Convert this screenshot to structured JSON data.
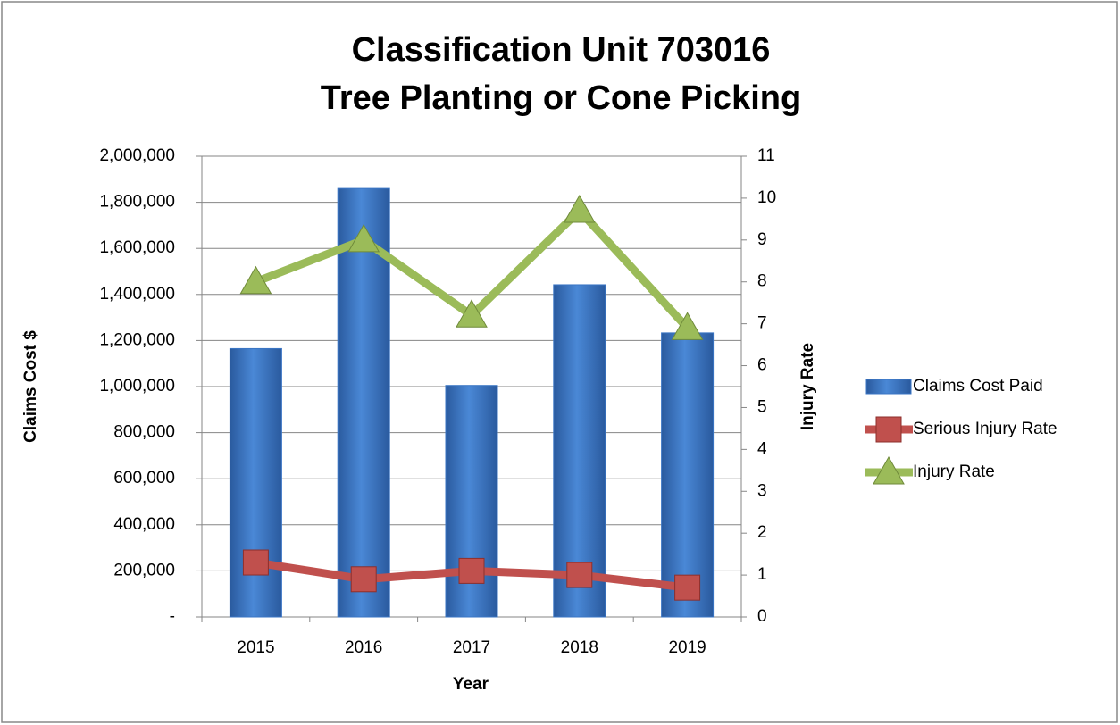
{
  "chart_data": {
    "type": "bar",
    "title": [
      "Classification Unit 703016",
      "Tree Planting or Cone Picking"
    ],
    "x_label": "Year",
    "y_label": "Claims Cost $",
    "y2_label": "Injury Rate",
    "categories": [
      "2015",
      "2016",
      "2017",
      "2018",
      "2019"
    ],
    "series": [
      {
        "name": "Claims Cost Paid",
        "type": "bar",
        "color": "#3a75c4",
        "values": [
          1165000,
          1860000,
          1005000,
          1442000,
          1233000
        ]
      },
      {
        "name": "Serious Injury Rate",
        "type": "line",
        "marker": "square",
        "axis": "y2",
        "color": "#c0504d",
        "values": [
          1.3,
          0.9,
          1.1,
          1.0,
          0.7
        ]
      },
      {
        "name": "Injury Rate",
        "type": "line",
        "marker": "triangle",
        "axis": "y2",
        "color": "#9bbb59",
        "values": [
          8.0,
          9.0,
          7.2,
          9.7,
          6.9
        ]
      }
    ],
    "ylim": [
      0,
      2000000
    ],
    "yticks": [
      {
        "value": 0,
        "label": "-"
      },
      {
        "value": 200000,
        "label": "200,000"
      },
      {
        "value": 400000,
        "label": "400,000"
      },
      {
        "value": 600000,
        "label": "600,000"
      },
      {
        "value": 800000,
        "label": "800,000"
      },
      {
        "value": 1000000,
        "label": "1,000,000"
      },
      {
        "value": 1200000,
        "label": "1,200,000"
      },
      {
        "value": 1400000,
        "label": "1,400,000"
      },
      {
        "value": 1600000,
        "label": "1,600,000"
      },
      {
        "value": 1800000,
        "label": "1,800,000"
      },
      {
        "value": 2000000,
        "label": "2,000,000"
      }
    ],
    "y2lim": [
      0,
      11
    ],
    "y2ticks": [
      0,
      1,
      2,
      3,
      4,
      5,
      6,
      7,
      8,
      9,
      10,
      11
    ],
    "grid": true,
    "legend": "right"
  }
}
